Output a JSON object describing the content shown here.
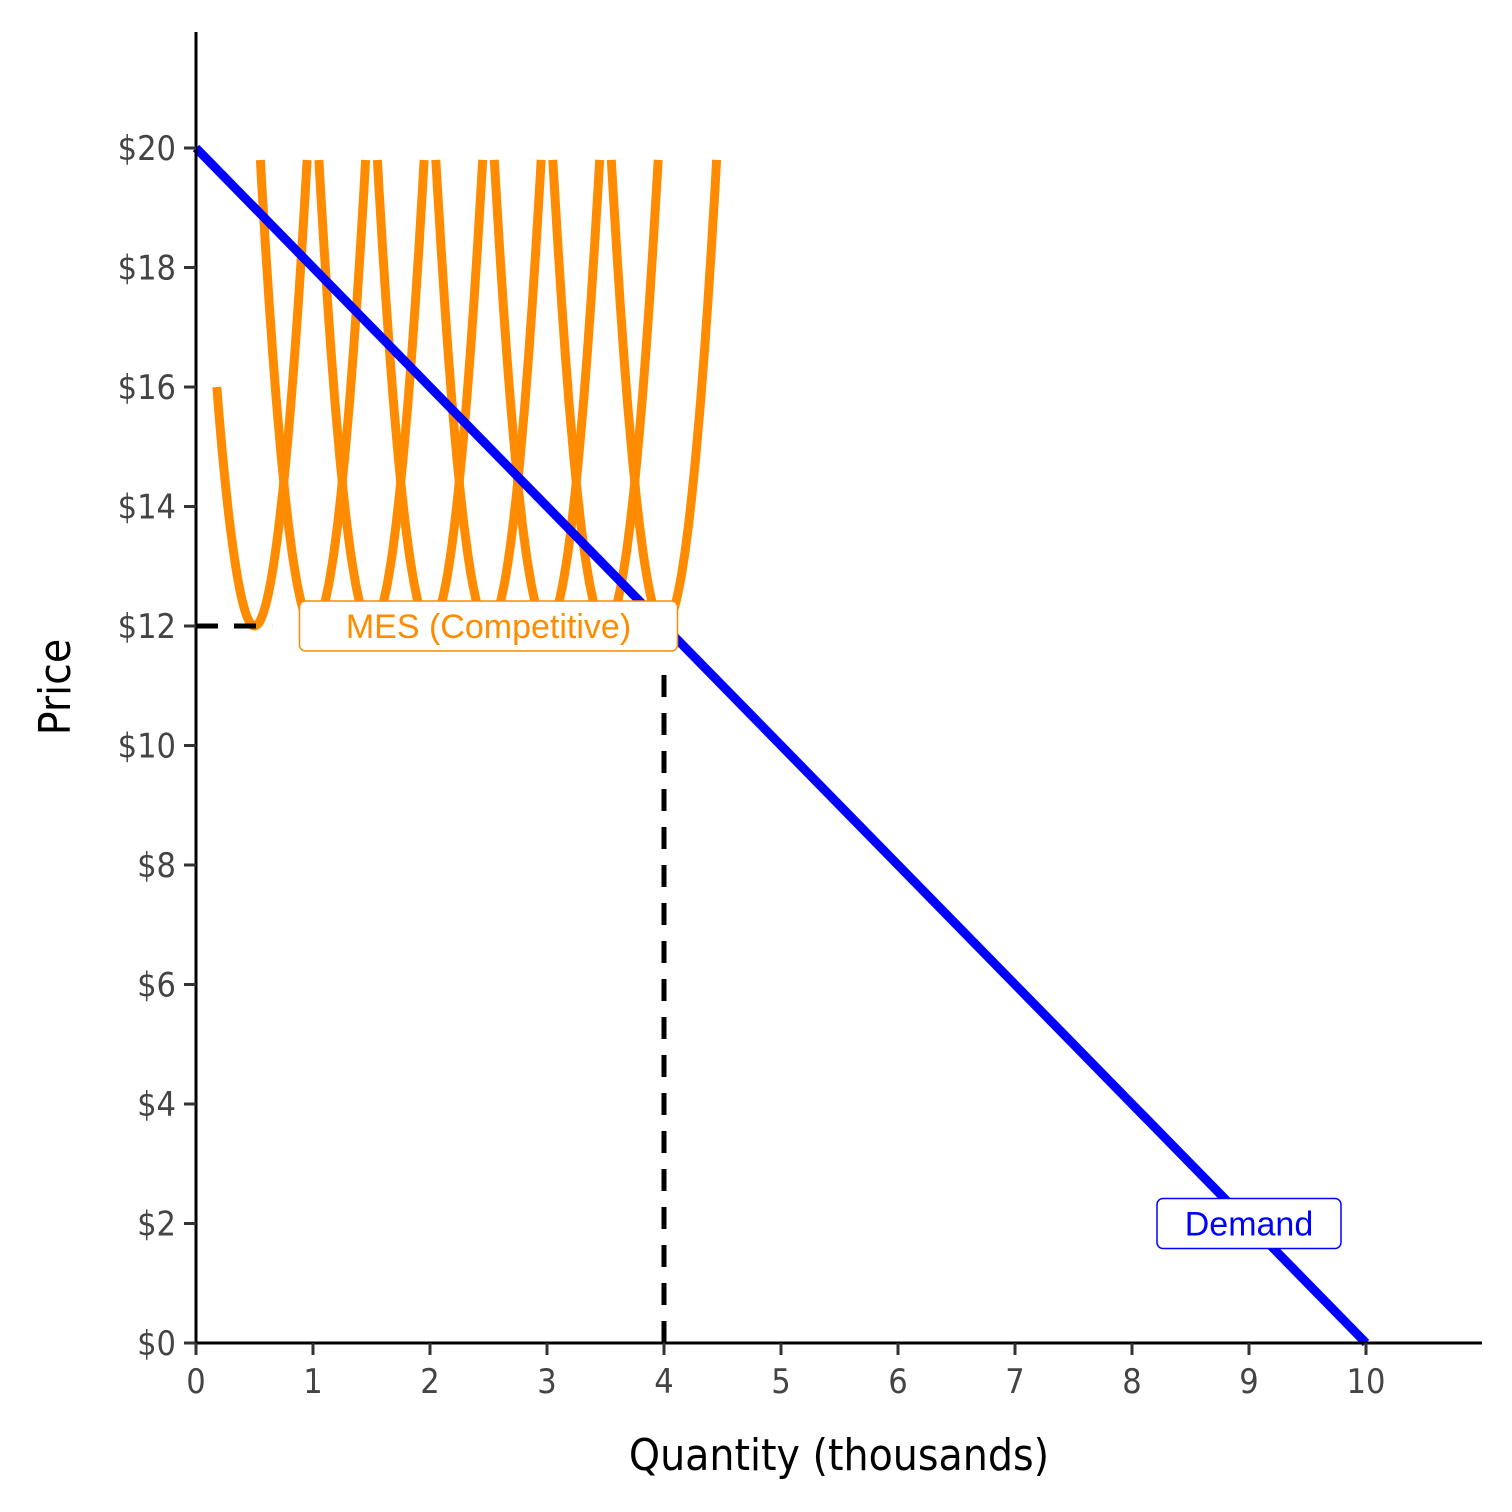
{
  "chart_data": {
    "type": "line",
    "xlabel": "Quantity (thousands)",
    "ylabel": "Price",
    "xlim": [
      0,
      11
    ],
    "ylim": [
      0,
      22
    ],
    "x_ticks": [
      0,
      1,
      2,
      3,
      4,
      5,
      6,
      7,
      8,
      9,
      10
    ],
    "x_tick_labels": [
      "0",
      "1",
      "2",
      "3",
      "4",
      "5",
      "6",
      "7",
      "8",
      "9",
      "10"
    ],
    "y_ticks": [
      0,
      2,
      4,
      6,
      8,
      10,
      12,
      14,
      16,
      18,
      20
    ],
    "y_tick_labels": [
      "$0",
      "$2",
      "$4",
      "$6",
      "$8",
      "$10",
      "$12",
      "$14",
      "$16",
      "$18",
      "$20"
    ],
    "grid": false,
    "series": [
      {
        "name": "Demand",
        "color": "#0000ff",
        "x": [
          0,
          10
        ],
        "y": [
          20,
          0
        ]
      }
    ],
    "average_cost_curves": {
      "color": "#ff8c00",
      "minimum_price": 12,
      "minima_x": [
        0.5,
        1.0,
        1.5,
        2.0,
        2.5,
        3.0,
        3.5,
        4.0
      ],
      "curve_top_price": 19.8,
      "curve_start_price": 16
    },
    "reference_lines": [
      {
        "x": [
          0,
          0.65
        ],
        "y": [
          12,
          12
        ],
        "color": "#000000",
        "style": "dashed"
      },
      {
        "x": [
          4,
          4
        ],
        "y": [
          0,
          11.2
        ],
        "color": "#000000",
        "style": "dashed"
      }
    ],
    "annotations": [
      {
        "text": "MES (Competitive)",
        "x": 2.5,
        "y": 12,
        "color": "#ff8c00"
      },
      {
        "text": "Demand",
        "x": 9.0,
        "y": 2,
        "color": "#0000ff"
      }
    ]
  }
}
